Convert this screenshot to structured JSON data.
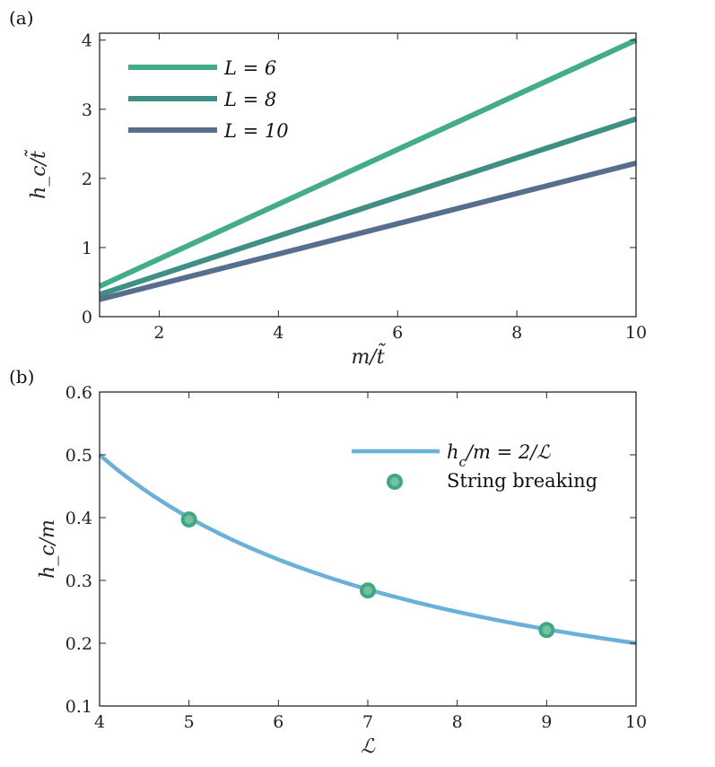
{
  "chart_data": [
    {
      "panel_label": "(a)",
      "type": "line",
      "xlabel": "m/t̃",
      "ylabel": "h_c/t̃",
      "xlim": [
        1,
        10
      ],
      "ylim": [
        0,
        4.1
      ],
      "xticks": [
        2,
        4,
        6,
        8,
        10
      ],
      "yticks": [
        0,
        1,
        2,
        3,
        4
      ],
      "grid": false,
      "legend_placement": "top-left",
      "series": [
        {
          "name": "L = 6",
          "color": "#43ad8a",
          "x": [
            1,
            10
          ],
          "y": [
            0.44,
            4.0
          ]
        },
        {
          "name": "L = 8",
          "color": "#3f8f86",
          "x": [
            1,
            10
          ],
          "y": [
            0.32,
            2.86
          ]
        },
        {
          "name": "L = 10",
          "color": "#566f8c",
          "x": [
            1,
            10
          ],
          "y": [
            0.25,
            2.22
          ]
        }
      ]
    },
    {
      "panel_label": "(b)",
      "type": "line",
      "xlabel": "ℒ",
      "ylabel": "h_c/m",
      "xlim": [
        4,
        10
      ],
      "ylim": [
        0.1,
        0.6
      ],
      "xticks": [
        4,
        5,
        6,
        7,
        8,
        9,
        10
      ],
      "yticks": [
        0.1,
        0.2,
        0.3,
        0.4,
        0.5,
        0.6
      ],
      "grid": false,
      "legend_placement": "top-right",
      "series": [
        {
          "name": "h_c/m = 2/ℒ",
          "type": "line",
          "color": "#6ab0d8",
          "function": "2/x"
        },
        {
          "name": "String breaking",
          "type": "scatter",
          "color": "#3fa881",
          "x": [
            5,
            7,
            9
          ],
          "y": [
            0.397,
            0.284,
            0.221
          ]
        }
      ]
    }
  ]
}
